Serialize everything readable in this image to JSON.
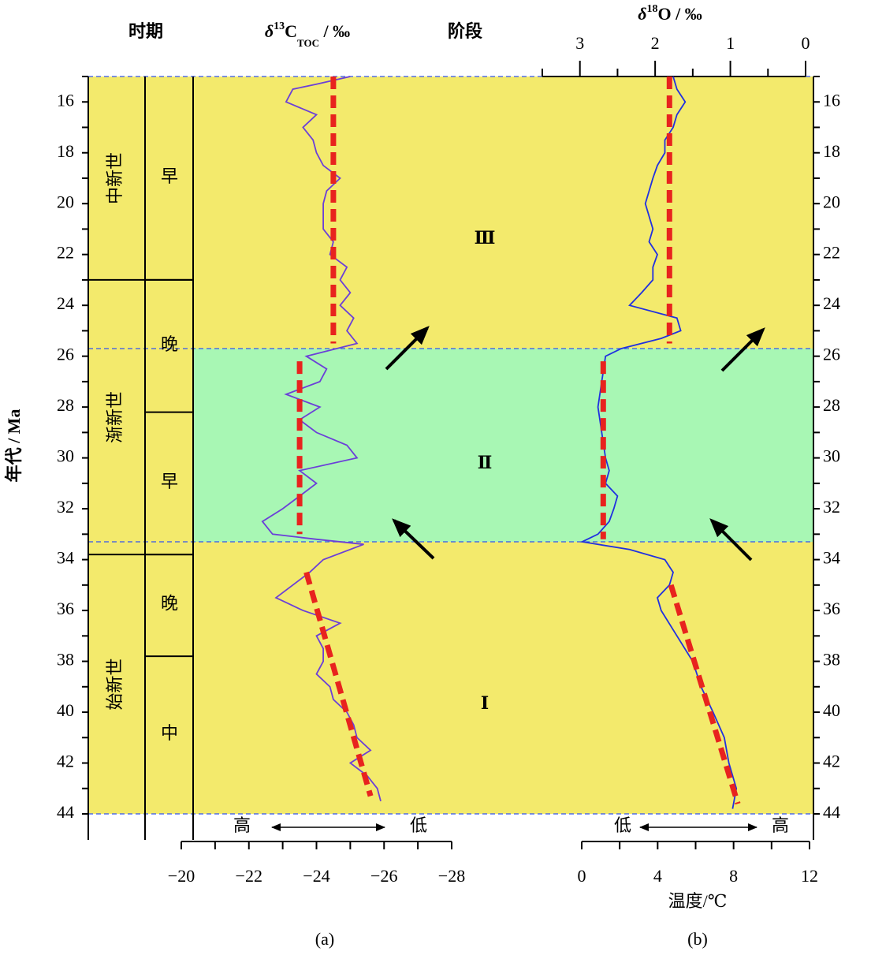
{
  "chart_data": {
    "type": "line",
    "ylabel": "年代 / Ma",
    "ylim": [
      15,
      44
    ],
    "yticks": [
      16,
      18,
      20,
      22,
      24,
      26,
      28,
      30,
      32,
      34,
      36,
      38,
      40,
      42,
      44
    ],
    "yminorticks": [
      15,
      17,
      19,
      21,
      23,
      25,
      27,
      29,
      31,
      33,
      35,
      37,
      39,
      41,
      43
    ],
    "headers": {
      "period": "时期",
      "stage": "阶段"
    },
    "epochs": [
      {
        "label": "中新世",
        "start": 15,
        "end": 23
      },
      {
        "label": "渐新世",
        "start": 23,
        "end": 33.8
      },
      {
        "label": "始新世",
        "start": 33.8,
        "end": 44
      }
    ],
    "subepochs": [
      {
        "label": "早",
        "start": 15,
        "end": 23
      },
      {
        "label": "晚",
        "start": 23,
        "end": 28.2
      },
      {
        "label": "早",
        "start": 28.2,
        "end": 33.8
      },
      {
        "label": "晚",
        "start": 33.8,
        "end": 37.8
      },
      {
        "label": "中",
        "start": 37.8,
        "end": 44
      }
    ],
    "stages": [
      {
        "label": "Ⅲ",
        "start": 15,
        "end": 25.7,
        "color": "#f3ea6c"
      },
      {
        "label": "Ⅱ",
        "start": 25.7,
        "end": 33.3,
        "color": "#a8f7b4"
      },
      {
        "label": "Ⅰ",
        "start": 33.3,
        "end": 44,
        "color": "#f3ea6c"
      }
    ],
    "panels": [
      {
        "label": "(a)",
        "title": [
          "δ",
          "13",
          "C",
          "TOC",
          " / ‰"
        ],
        "xlim": [
          -20,
          -28
        ],
        "xticks": [
          {
            "value": -20,
            "label": "−20"
          },
          {
            "value": -22,
            "label": "−22"
          },
          {
            "value": -24,
            "label": "−24"
          },
          {
            "value": -26,
            "label": "−26"
          },
          {
            "value": -28,
            "label": "−28"
          }
        ],
        "xminorticks": [
          -21,
          -23,
          -25,
          -27
        ],
        "direction": [
          "高",
          "低"
        ],
        "series": [
          {
            "color": "#6b3fd8",
            "age": [
              15.0,
              15.3,
              15.5,
              16.0,
              16.5,
              17.0,
              17.5,
              18.0,
              18.5,
              19.0,
              19.5,
              20.0,
              21.0,
              21.5,
              22.0,
              22.5,
              23.0,
              23.5,
              24.0,
              24.5,
              25.0,
              25.5,
              26.0,
              26.5,
              27.0,
              27.5,
              28.0,
              28.5,
              29.0,
              29.5,
              30.0,
              30.5,
              31.0,
              31.5,
              32.0,
              32.5,
              33.0,
              33.2,
              33.4,
              34.0,
              34.5,
              35.0,
              35.5,
              36.0,
              36.5,
              37.0,
              37.5,
              38.0,
              38.5,
              39.0,
              39.5,
              40.0,
              40.5,
              41.0,
              41.5,
              42.0,
              42.5,
              43.0,
              43.5
            ],
            "values": [
              -25.0,
              -24.0,
              -23.3,
              -23.1,
              -24.0,
              -23.6,
              -23.9,
              -24.0,
              -24.2,
              -24.7,
              -24.3,
              -24.2,
              -24.2,
              -24.5,
              -24.4,
              -24.9,
              -24.7,
              -25.0,
              -24.7,
              -25.1,
              -24.9,
              -25.2,
              -23.7,
              -24.3,
              -24.1,
              -23.1,
              -24.1,
              -23.5,
              -24.0,
              -24.9,
              -25.2,
              -23.5,
              -24.0,
              -23.5,
              -23.0,
              -22.4,
              -22.7,
              -24.0,
              -25.4,
              -24.2,
              -23.8,
              -23.3,
              -22.8,
              -23.6,
              -24.7,
              -24.0,
              -24.2,
              -24.2,
              -24.0,
              -24.4,
              -24.5,
              -24.9,
              -25.1,
              -25.2,
              -25.6,
              -25.0,
              -25.5,
              -25.8,
              -25.9
            ]
          }
        ],
        "trends": [
          {
            "color": "#e8231e",
            "age": [
              15,
              25.5
            ],
            "values": [
              -24.5,
              -24.5
            ]
          },
          {
            "color": "#e8231e",
            "age": [
              26.2,
              33
            ],
            "values": [
              -23.5,
              -23.5
            ]
          },
          {
            "color": "#e8231e",
            "age": [
              34.5,
              43.3
            ],
            "values": [
              -23.7,
              -25.6
            ]
          }
        ]
      },
      {
        "label": "(b)",
        "title": [
          "δ",
          "18",
          "O / ‰"
        ],
        "xlim": [
          3.5,
          0
        ],
        "xticks": [
          3,
          2,
          1,
          0
        ],
        "xminorticks": [
          3.5,
          2.5,
          1.5,
          0.5
        ],
        "temperature": {
          "xlabel": "温度/℃",
          "xlim": [
            0,
            12
          ],
          "xticks": [
            0,
            4,
            8,
            12
          ],
          "xminorticks": [
            2,
            6,
            10
          ]
        },
        "direction": [
          "低",
          "高"
        ],
        "series": [
          {
            "color": "#2030e0",
            "age": [
              15.0,
              15.5,
              16.0,
              16.5,
              17.0,
              17.5,
              18.0,
              18.5,
              19.0,
              19.5,
              20.0,
              20.5,
              21.0,
              21.5,
              22.0,
              22.5,
              23.0,
              23.5,
              24.0,
              24.5,
              25.0,
              25.3,
              25.7,
              26.0,
              27.0,
              28.0,
              29.0,
              30.0,
              30.5,
              31.0,
              31.5,
              32.0,
              32.5,
              33.0,
              33.3,
              33.6,
              34.0,
              34.5,
              35.0,
              35.5,
              36.0,
              37.0,
              38.0,
              39.0,
              40.0,
              41.0,
              42.0,
              43.0,
              43.8
            ],
            "values": [
              1.76,
              1.71,
              1.6,
              1.71,
              1.76,
              1.87,
              1.87,
              1.97,
              2.03,
              2.08,
              2.13,
              2.08,
              2.03,
              2.08,
              1.97,
              2.03,
              2.03,
              2.18,
              2.34,
              1.71,
              1.66,
              1.92,
              2.45,
              2.66,
              2.71,
              2.76,
              2.71,
              2.66,
              2.61,
              2.66,
              2.5,
              2.55,
              2.61,
              2.76,
              2.97,
              2.34,
              1.87,
              1.76,
              1.81,
              1.97,
              1.92,
              1.71,
              1.5,
              1.39,
              1.23,
              1.08,
              1.02,
              0.92,
              0.97
            ]
          }
        ],
        "trends": [
          {
            "color": "#e8231e",
            "age": [
              15,
              25.5
            ],
            "values": [
              1.81,
              1.81
            ]
          },
          {
            "color": "#e8231e",
            "age": [
              26.2,
              33.2
            ],
            "values": [
              2.69,
              2.69
            ]
          },
          {
            "color": "#e8231e",
            "age": [
              35,
              43.6
            ],
            "values": [
              1.79,
              0.9
            ]
          }
        ]
      }
    ]
  }
}
